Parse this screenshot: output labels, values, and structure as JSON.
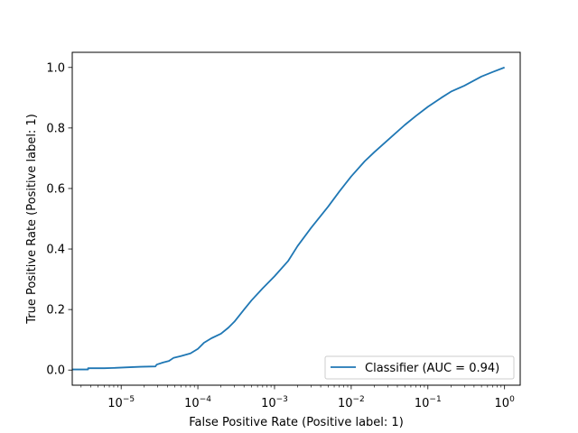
{
  "chart_data": {
    "type": "line",
    "title": "",
    "xlabel": "False Positive Rate (Positive label: 1)",
    "ylabel": "True Positive Rate (Positive label: 1)",
    "x_scale": "log",
    "xlim": [
      2.3e-06,
      1.6
    ],
    "ylim": [
      -0.05,
      1.05
    ],
    "grid": false,
    "legend_position": "lower-right",
    "x_ticks": [
      {
        "value": 1e-05,
        "mantissa": "10",
        "exponent": "−5"
      },
      {
        "value": 0.0001,
        "mantissa": "10",
        "exponent": "−4"
      },
      {
        "value": 0.001,
        "mantissa": "10",
        "exponent": "−3"
      },
      {
        "value": 0.01,
        "mantissa": "10",
        "exponent": "−2"
      },
      {
        "value": 0.1,
        "mantissa": "10",
        "exponent": "−1"
      },
      {
        "value": 1,
        "mantissa": "10",
        "exponent": "0"
      }
    ],
    "y_ticks": [
      {
        "value": 0.0,
        "label": "0.0"
      },
      {
        "value": 0.2,
        "label": "0.2"
      },
      {
        "value": 0.4,
        "label": "0.4"
      },
      {
        "value": 0.6,
        "label": "0.6"
      },
      {
        "value": 0.8,
        "label": "0.8"
      },
      {
        "value": 1.0,
        "label": "1.0"
      }
    ],
    "series": [
      {
        "name": "Classifier (AUC = 0.94)",
        "color": "#1f77b4",
        "points": [
          [
            2.3e-06,
            0.002
          ],
          [
            3.7e-06,
            0.002
          ],
          [
            3.7e-06,
            0.006
          ],
          [
            6e-06,
            0.006
          ],
          [
            8e-06,
            0.007
          ],
          [
            1.2e-05,
            0.009
          ],
          [
            1.8e-05,
            0.011
          ],
          [
            2.8e-05,
            0.012
          ],
          [
            2.9e-05,
            0.018
          ],
          [
            3.5e-05,
            0.025
          ],
          [
            4.2e-05,
            0.03
          ],
          [
            4.8e-05,
            0.04
          ],
          [
            6e-05,
            0.046
          ],
          [
            8e-05,
            0.055
          ],
          [
            0.0001,
            0.07
          ],
          [
            0.00012,
            0.09
          ],
          [
            0.00015,
            0.105
          ],
          [
            0.0002,
            0.12
          ],
          [
            0.00025,
            0.14
          ],
          [
            0.0003,
            0.16
          ],
          [
            0.0004,
            0.2
          ],
          [
            0.0005,
            0.23
          ],
          [
            0.0007,
            0.27
          ],
          [
            0.001,
            0.31
          ],
          [
            0.0015,
            0.36
          ],
          [
            0.002,
            0.41
          ],
          [
            0.003,
            0.47
          ],
          [
            0.005,
            0.54
          ],
          [
            0.007,
            0.59
          ],
          [
            0.01,
            0.64
          ],
          [
            0.015,
            0.69
          ],
          [
            0.02,
            0.72
          ],
          [
            0.03,
            0.76
          ],
          [
            0.05,
            0.81
          ],
          [
            0.07,
            0.84
          ],
          [
            0.1,
            0.87
          ],
          [
            0.15,
            0.9
          ],
          [
            0.2,
            0.92
          ],
          [
            0.3,
            0.94
          ],
          [
            0.5,
            0.97
          ],
          [
            0.7,
            0.985
          ],
          [
            1.0,
            1.0
          ]
        ]
      }
    ]
  }
}
